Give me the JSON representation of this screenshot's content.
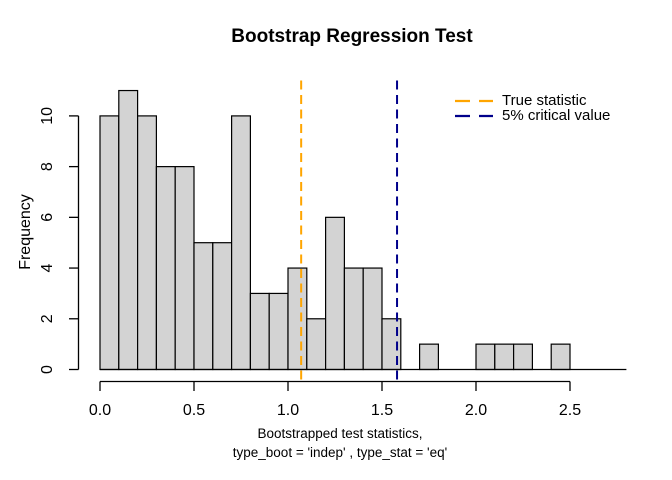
{
  "chart_data": {
    "type": "histogram",
    "title": "Bootstrap Regression Test",
    "xlabel": [
      "Bootstrapped test statistics,",
      "type_boot = 'indep' , type_stat = 'eq'"
    ],
    "ylabel": "Frequency",
    "bin_start": 0.0,
    "bin_width": 0.1,
    "counts": [
      10,
      11,
      10,
      8,
      8,
      5,
      5,
      10,
      3,
      3,
      4,
      2,
      6,
      4,
      4,
      2,
      0,
      1,
      0,
      0,
      1,
      1,
      1,
      0,
      1
    ],
    "x_ticks": [
      {
        "value": 0.0,
        "label": "0.0"
      },
      {
        "value": 0.5,
        "label": "0.5"
      },
      {
        "value": 1.0,
        "label": "1.0"
      },
      {
        "value": 1.5,
        "label": "1.5"
      },
      {
        "value": 2.0,
        "label": "2.0"
      },
      {
        "value": 2.5,
        "label": "2.5"
      }
    ],
    "y_ticks": [
      {
        "value": 0,
        "label": "0"
      },
      {
        "value": 2,
        "label": "2"
      },
      {
        "value": 4,
        "label": "4"
      },
      {
        "value": 6,
        "label": "6"
      },
      {
        "value": 8,
        "label": "8"
      },
      {
        "value": 10,
        "label": "10"
      }
    ],
    "xlim": [
      0.0,
      2.8
    ],
    "ylim": [
      0,
      11
    ],
    "grid": false,
    "legend": {
      "position": "top-right",
      "box": false
    },
    "vlines": [
      {
        "value": 1.07,
        "label": "True statistic",
        "color": "#FFA500",
        "style": "dashed"
      },
      {
        "value": 1.58,
        "label": "5% critical value",
        "color": "#00008B",
        "style": "dashed"
      }
    ],
    "colors": {
      "bar_fill": "#D3D3D3",
      "bar_border": "#000000",
      "axis": "#000000",
      "text": "#000000",
      "background": "#FFFFFF"
    }
  }
}
